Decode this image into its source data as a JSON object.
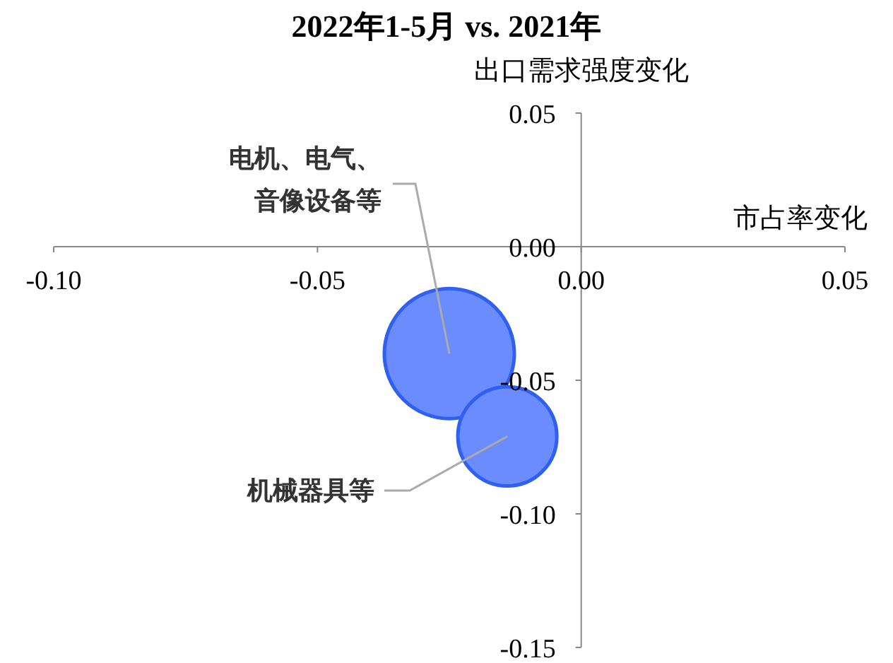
{
  "chart_data": {
    "type": "bubble",
    "title": "2022年1-5月 vs. 2021年",
    "xlabel": "市占率变化",
    "ylabel": "出口需求强度变化",
    "x": [
      -0.025,
      -0.014
    ],
    "values": [
      -0.04,
      -0.071
    ],
    "sizes": [
      1,
      0.58
    ],
    "color": "#6a8cff",
    "xlim": [
      -0.1,
      0.05
    ],
    "ylim": [
      -0.15,
      0.05
    ],
    "xticks": [
      {
        "value": -0.1,
        "label": "-0.10"
      },
      {
        "value": -0.05,
        "label": "-0.05"
      },
      {
        "value": 0,
        "label": "0.00"
      },
      {
        "value": 0.05,
        "label": "0.05"
      }
    ],
    "yticks": [
      {
        "value": 0.05,
        "label": "0.05"
      },
      {
        "value": 0,
        "label": "0.00"
      },
      {
        "value": -0.05,
        "label": "-0.05"
      },
      {
        "value": -0.1,
        "label": "-0.10"
      },
      {
        "value": -0.15,
        "label": "-0.15"
      }
    ],
    "annotations": [
      {
        "text": "电机、电气、音像设备等",
        "x": -0.025,
        "y": -0.04
      },
      {
        "text": "机械器具等",
        "x": -0.014,
        "y": -0.071
      }
    ],
    "grid": false
  }
}
